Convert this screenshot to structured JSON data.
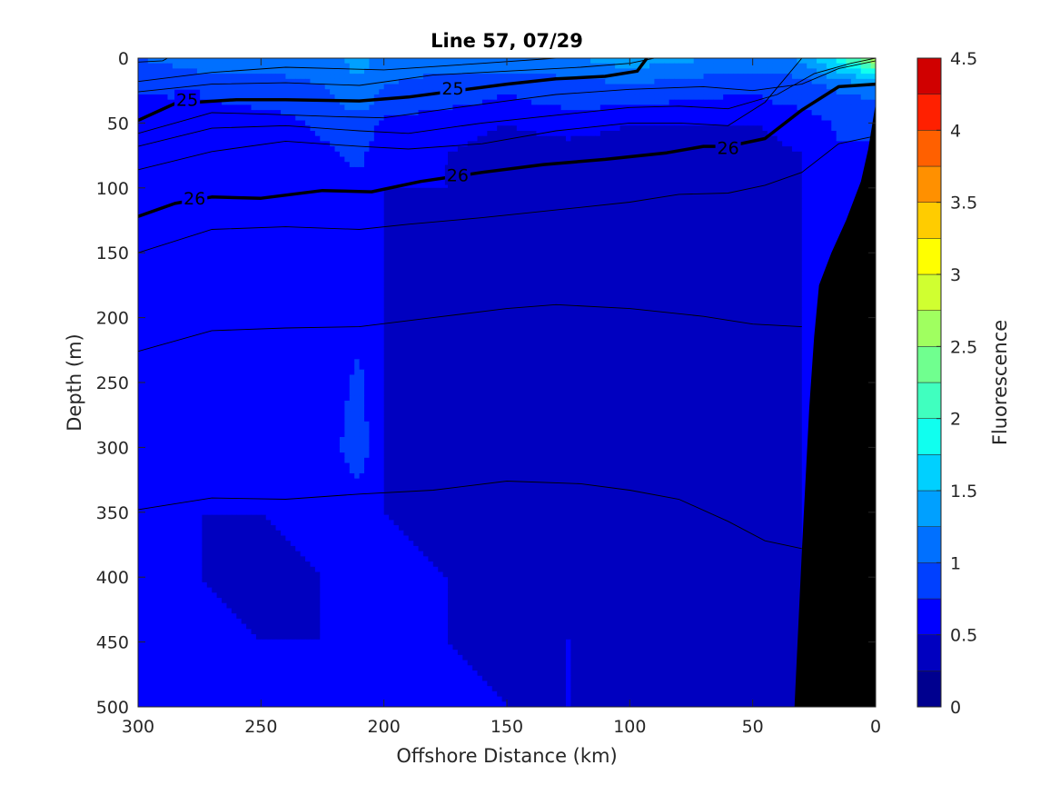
{
  "chart_data": {
    "type": "heatmap",
    "title": "Line 57, 07/29",
    "xlabel": "Offshore Distance (km)",
    "ylabel": "Depth (m)",
    "colorbar_label": "Fluorescence",
    "xlim": [
      300,
      0
    ],
    "ylim": [
      0,
      500
    ],
    "x_reversed": true,
    "y_reversed": true,
    "xticks": [
      300,
      250,
      200,
      150,
      100,
      50,
      0
    ],
    "yticks": [
      0,
      50,
      100,
      150,
      200,
      250,
      300,
      350,
      400,
      450,
      500
    ],
    "colorbar": {
      "min": 0,
      "max": 4.5,
      "step": 0.25,
      "ticks": [
        0,
        0.5,
        1,
        1.5,
        2,
        2.5,
        3,
        3.5,
        4,
        4.5
      ],
      "colors": [
        "#00008f",
        "#0000c0",
        "#0000ff",
        "#0040ff",
        "#0070ff",
        "#00a0ff",
        "#00d0ff",
        "#10ffef",
        "#40ffbf",
        "#70ff8f",
        "#a0ff60",
        "#d0ff30",
        "#ffff00",
        "#ffcc00",
        "#ff9000",
        "#ff6000",
        "#ff2000",
        "#d00000",
        "#a00000"
      ]
    },
    "fluorescence_grid": {
      "x": [
        300,
        275,
        250,
        225,
        210,
        200,
        175,
        150,
        125,
        100,
        75,
        50,
        30,
        15,
        5,
        0
      ],
      "depth": [
        0,
        10,
        20,
        35,
        50,
        75,
        100,
        150,
        200,
        250,
        300,
        350,
        400,
        450,
        500
      ],
      "values": [
        [
          1.0,
          1.1,
          1.1,
          1.2,
          1.3,
          1.2,
          1.1,
          1.1,
          1.2,
          1.4,
          1.3,
          1.1,
          1.3,
          1.9,
          2.4,
          2.8
        ],
        [
          0.9,
          1.0,
          1.0,
          1.1,
          1.3,
          1.1,
          1.0,
          1.0,
          1.1,
          1.2,
          1.1,
          1.0,
          1.1,
          1.5,
          1.8,
          2.0
        ],
        [
          0.8,
          0.9,
          0.9,
          1.0,
          1.2,
          1.0,
          0.9,
          0.8,
          0.9,
          1.0,
          0.9,
          0.8,
          0.9,
          1.1,
          1.2,
          1.2
        ],
        [
          0.7,
          0.7,
          0.8,
          0.9,
          1.1,
          0.9,
          0.8,
          0.7,
          0.8,
          0.8,
          0.7,
          0.7,
          0.8,
          0.9,
          0.9,
          0.9
        ],
        [
          0.6,
          0.6,
          0.6,
          0.8,
          0.9,
          0.7,
          0.6,
          0.5,
          0.6,
          0.5,
          0.5,
          0.5,
          0.6,
          0.8,
          0.8,
          0.8
        ],
        [
          0.5,
          0.5,
          0.5,
          0.7,
          0.8,
          0.6,
          0.5,
          0.4,
          0.4,
          0.4,
          0.4,
          0.4,
          0.5,
          0.7,
          0.7,
          0.7
        ],
        [
          0.5,
          0.5,
          0.5,
          0.6,
          0.7,
          0.5,
          0.5,
          0.4,
          0.4,
          0.4,
          0.4,
          0.4,
          0.5,
          0.7,
          0.7,
          0.6
        ],
        [
          0.5,
          0.5,
          0.5,
          0.6,
          0.7,
          0.5,
          0.45,
          0.35,
          0.4,
          0.4,
          0.4,
          0.4,
          0.5,
          0.6,
          0.6,
          0.6
        ],
        [
          0.5,
          0.6,
          0.5,
          0.6,
          0.7,
          0.5,
          0.45,
          0.35,
          0.4,
          0.4,
          0.4,
          0.4,
          0.5,
          0.5,
          0.5,
          0.5
        ],
        [
          0.5,
          0.6,
          0.5,
          0.6,
          0.8,
          0.5,
          0.45,
          0.35,
          0.4,
          0.4,
          0.4,
          0.4,
          0.5,
          0.5,
          0.5,
          0.5
        ],
        [
          0.5,
          0.6,
          0.5,
          0.6,
          0.9,
          0.5,
          0.45,
          0.35,
          0.4,
          0.4,
          0.4,
          0.4,
          0.5,
          0.5,
          0.5,
          0.5
        ],
        [
          0.5,
          0.5,
          0.5,
          0.55,
          0.6,
          0.5,
          0.45,
          0.35,
          0.4,
          0.4,
          0.4,
          0.4,
          0.5,
          0.5,
          0.5,
          0.5
        ],
        [
          0.5,
          0.5,
          0.45,
          0.5,
          0.5,
          0.55,
          0.5,
          0.4,
          0.4,
          0.4,
          0.4,
          0.4,
          0.5,
          0.5,
          0.5,
          0.5
        ],
        [
          0.5,
          0.55,
          0.5,
          0.5,
          0.5,
          0.6,
          0.5,
          0.45,
          0.5,
          0.4,
          0.4,
          0.4,
          0.5,
          0.5,
          0.5,
          0.5
        ],
        [
          0.55,
          0.55,
          0.5,
          0.55,
          0.5,
          0.6,
          0.55,
          0.5,
          0.5,
          0.4,
          0.4,
          0.4,
          0.5,
          0.5,
          0.5,
          0.5
        ]
      ]
    },
    "density_contours": {
      "thick_levels": [
        {
          "label": "25",
          "x": [
            300,
            285,
            260,
            240,
            210,
            190,
            170,
            150,
            130,
            110,
            97,
            93
          ],
          "depth": [
            48,
            35,
            32,
            32,
            33,
            30,
            25,
            20,
            16,
            14,
            10,
            0
          ],
          "label_positions": [
            [
              280,
              32
            ],
            [
              172,
              23
            ]
          ]
        },
        {
          "label": "26",
          "x": [
            300,
            285,
            270,
            250,
            225,
            205,
            185,
            160,
            135,
            110,
            85,
            70,
            60,
            45,
            30,
            15,
            0
          ],
          "depth": [
            122,
            112,
            107,
            108,
            102,
            103,
            95,
            88,
            82,
            78,
            73,
            68,
            68,
            62,
            40,
            22,
            20
          ],
          "label_positions": [
            [
              277,
              108
            ],
            [
              170,
              90
            ],
            [
              60,
              69
            ]
          ]
        }
      ],
      "thin_isopycnals": [
        {
          "x": [
            300,
            290,
            288
          ],
          "depth": [
            3,
            2,
            0
          ]
        },
        {
          "x": [
            300,
            270,
            240,
            200,
            160,
            130
          ],
          "depth": [
            18,
            11,
            7,
            9,
            4,
            0
          ]
        },
        {
          "x": [
            300,
            270,
            240,
            210,
            180,
            150,
            120,
            100,
            90
          ],
          "depth": [
            26,
            20,
            19,
            21,
            13,
            10,
            7,
            4,
            0
          ]
        },
        {
          "x": [
            300,
            270,
            250,
            220,
            200,
            170,
            150,
            130,
            100,
            70,
            50,
            30,
            15,
            0
          ],
          "depth": [
            58,
            42,
            43,
            45,
            46,
            38,
            33,
            28,
            24,
            22,
            25,
            20,
            8,
            2
          ]
        },
        {
          "x": [
            300,
            270,
            240,
            210,
            190,
            160,
            130,
            100,
            80,
            60,
            40,
            25,
            10,
            0
          ],
          "depth": [
            68,
            54,
            52,
            56,
            58,
            50,
            44,
            38,
            37,
            39,
            28,
            12,
            4,
            0
          ]
        },
        {
          "x": [
            300,
            270,
            240,
            210,
            190,
            160,
            130,
            100,
            80,
            60,
            45,
            30
          ],
          "depth": [
            86,
            72,
            64,
            68,
            70,
            66,
            56,
            50,
            50,
            52,
            34,
            0
          ]
        },
        {
          "x": [
            300,
            270,
            240,
            210,
            190,
            160,
            130,
            100,
            80,
            60,
            45,
            30,
            15,
            0
          ],
          "depth": [
            150,
            132,
            130,
            132,
            128,
            123,
            117,
            111,
            105,
            104,
            98,
            88,
            66,
            60
          ]
        },
        {
          "x": [
            300,
            270,
            240,
            210,
            180,
            150,
            130,
            100,
            70,
            50,
            30
          ],
          "depth": [
            226,
            210,
            208,
            207,
            200,
            193,
            190,
            193,
            199,
            205,
            207
          ]
        },
        {
          "x": [
            300,
            270,
            240,
            210,
            180,
            150,
            120,
            100,
            80,
            60,
            45,
            30
          ],
          "depth": [
            348,
            339,
            340,
            336,
            333,
            326,
            328,
            333,
            340,
            357,
            372,
            378
          ]
        }
      ]
    },
    "bathymetry": {
      "color": "#000000",
      "x": [
        33,
        30,
        27,
        25,
        23,
        18,
        12,
        6,
        3,
        0
      ],
      "depth": [
        500,
        380,
        270,
        215,
        175,
        150,
        125,
        95,
        70,
        35
      ]
    }
  }
}
